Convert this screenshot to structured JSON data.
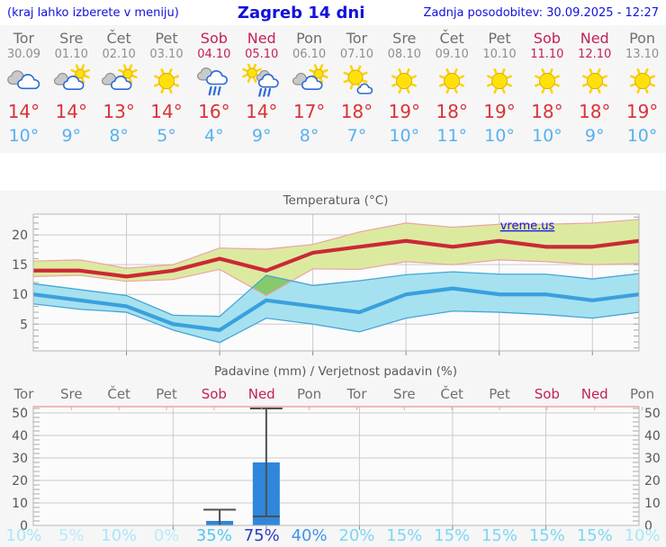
{
  "header": {
    "hint": "(kraj lahko izberete v meniju)",
    "title": "Zagreb 14 dni",
    "updated": "Zadnja posodobitev: 30.09.2025 - 12:27"
  },
  "watermark": "vreme.us",
  "days": [
    {
      "name": "Tor",
      "date": "30.09",
      "weekend": false,
      "icon": "cloudy",
      "high": "14°",
      "low": "10°",
      "prob": "10%",
      "prob_color": "#a9e7f8"
    },
    {
      "name": "Sre",
      "date": "01.10",
      "weekend": false,
      "icon": "partly-cloudy",
      "high": "14°",
      "low": "9°",
      "prob": "5%",
      "prob_color": "#b9ecf9"
    },
    {
      "name": "Čet",
      "date": "02.10",
      "weekend": false,
      "icon": "partly-cloudy",
      "high": "13°",
      "low": "8°",
      "prob": "10%",
      "prob_color": "#a9e7f8"
    },
    {
      "name": "Pet",
      "date": "03.10",
      "weekend": false,
      "icon": "sunny",
      "high": "14°",
      "low": "5°",
      "prob": "0%",
      "prob_color": "#b9ecf9"
    },
    {
      "name": "Sob",
      "date": "04.10",
      "weekend": true,
      "icon": "rain",
      "high": "16°",
      "low": "4°",
      "prob": "35%",
      "prob_color": "#55c6f0"
    },
    {
      "name": "Ned",
      "date": "05.10",
      "weekend": true,
      "icon": "sun-rain",
      "high": "14°",
      "low": "9°",
      "prob": "75%",
      "prob_color": "#2b3cc0"
    },
    {
      "name": "Pon",
      "date": "06.10",
      "weekend": false,
      "icon": "partly-cloudy",
      "high": "17°",
      "low": "8°",
      "prob": "40%",
      "prob_color": "#3e95e8"
    },
    {
      "name": "Tor",
      "date": "07.10",
      "weekend": false,
      "icon": "mostly-sunny",
      "high": "18°",
      "low": "7°",
      "prob": "20%",
      "prob_color": "#7cd7f3"
    },
    {
      "name": "Sre",
      "date": "08.10",
      "weekend": false,
      "icon": "sunny",
      "high": "19°",
      "low": "10°",
      "prob": "15%",
      "prob_color": "#7cd7f3"
    },
    {
      "name": "Čet",
      "date": "09.10",
      "weekend": false,
      "icon": "sunny",
      "high": "18°",
      "low": "11°",
      "prob": "15%",
      "prob_color": "#7cd7f3"
    },
    {
      "name": "Pet",
      "date": "10.10",
      "weekend": false,
      "icon": "sunny",
      "high": "19°",
      "low": "10°",
      "prob": "15%",
      "prob_color": "#7cd7f3"
    },
    {
      "name": "Sob",
      "date": "11.10",
      "weekend": true,
      "icon": "sunny",
      "high": "18°",
      "low": "10°",
      "prob": "15%",
      "prob_color": "#7cd7f3"
    },
    {
      "name": "Ned",
      "date": "12.10",
      "weekend": true,
      "icon": "sunny",
      "high": "18°",
      "low": "9°",
      "prob": "15%",
      "prob_color": "#7cd7f3"
    },
    {
      "name": "Pon",
      "date": "13.10",
      "weekend": false,
      "icon": "sunny",
      "high": "19°",
      "low": "10°",
      "prob": "10%",
      "prob_color": "#a9e7f8"
    }
  ],
  "chart_data": [
    {
      "type": "line",
      "title": "Temperatura (°C)",
      "categories": [
        "Tor",
        "Sre",
        "Čet",
        "Pet",
        "Sob",
        "Ned",
        "Pon",
        "Tor",
        "Sre",
        "Čet",
        "Pet",
        "Sob",
        "Ned",
        "Pon"
      ],
      "ylim": [
        0.5,
        23.5
      ],
      "yticks": [
        5,
        10,
        15,
        20
      ],
      "grid": true,
      "legend_position": "none",
      "series": [
        {
          "name": "max_temp",
          "values": [
            14,
            14,
            13,
            14,
            16,
            14,
            17,
            18,
            19,
            18,
            19,
            18,
            18,
            19
          ]
        },
        {
          "name": "max_range_high",
          "values": [
            15.6,
            15.8,
            14.4,
            15.0,
            17.8,
            17.6,
            18.4,
            20.5,
            22.0,
            21.3,
            21.8,
            21.8,
            22.0,
            22.6
          ]
        },
        {
          "name": "max_range_low",
          "values": [
            13.0,
            13.2,
            12.2,
            12.5,
            14.2,
            9.8,
            14.3,
            14.2,
            15.5,
            15.0,
            15.8,
            15.5,
            15.0,
            15.2
          ]
        },
        {
          "name": "min_temp",
          "values": [
            10,
            9,
            8,
            5,
            4,
            9,
            8,
            7,
            10,
            11,
            10,
            10,
            9,
            10
          ]
        },
        {
          "name": "min_range_high",
          "values": [
            11.8,
            10.8,
            9.8,
            6.5,
            6.3,
            13.2,
            11.5,
            12.3,
            13.3,
            13.8,
            13.4,
            13.4,
            12.6,
            13.5
          ]
        },
        {
          "name": "min_range_low",
          "values": [
            8.4,
            7.5,
            7.0,
            4.0,
            1.9,
            6.0,
            5.0,
            3.7,
            6.0,
            7.2,
            7.0,
            6.6,
            6.0,
            7.0
          ]
        }
      ]
    },
    {
      "type": "bar",
      "title": "Padavine (mm) / Verjetnost padavin (%)",
      "categories": [
        "Tor",
        "Sre",
        "Čet",
        "Pet",
        "Sob",
        "Ned",
        "Pon",
        "Tor",
        "Sre",
        "Čet",
        "Pet",
        "Sob",
        "Ned",
        "Pon"
      ],
      "weekend_flags": [
        false,
        false,
        false,
        false,
        true,
        true,
        false,
        false,
        false,
        false,
        false,
        true,
        true,
        false
      ],
      "ylim": [
        0,
        52.8
      ],
      "yticks": [
        0,
        10,
        20,
        30,
        40,
        50
      ],
      "values_mm": [
        0,
        0,
        0,
        0,
        2,
        28,
        0,
        0,
        0,
        0,
        0,
        0,
        0,
        0
      ],
      "whisker_high": [
        null,
        null,
        null,
        null,
        7,
        52,
        null,
        null,
        null,
        null,
        null,
        null,
        null,
        null
      ],
      "whisker_low": [
        null,
        null,
        null,
        null,
        0,
        4,
        null,
        null,
        null,
        null,
        null,
        null,
        null,
        null
      ],
      "probabilities": [
        "10%",
        "5%",
        "10%",
        "0%",
        "35%",
        "75%",
        "40%",
        "20%",
        "15%",
        "15%",
        "15%",
        "15%",
        "15%",
        "10%"
      ]
    }
  ],
  "colors": {
    "header_blue": "#1111dd",
    "weekend": "#c42059",
    "day_gray": "#6f6f6f",
    "date_gray": "#8f8f8f",
    "high_red": "#d93338",
    "low_blue": "#57b1f1",
    "section_bg": "#f6f6f6",
    "plot_bg": "#fbfbfb",
    "grid": "#cbcbcb",
    "frame": "#b5b5b5",
    "minor_tick": "#a8a8a8",
    "axis_text": "#565656",
    "max_band_fill": "#dcea9f",
    "band_edge_pink": "#eda3a3",
    "overlap_green": "#86c96c",
    "min_band_fill": "#a6e1ef",
    "min_band_edge": "#45a5da",
    "max_line": "#cb2936",
    "min_line": "#3aa0dd",
    "bar_blue": "#2e87dc",
    "whisker": "#4f4f4f",
    "watermark_blue": "#1414e6"
  }
}
